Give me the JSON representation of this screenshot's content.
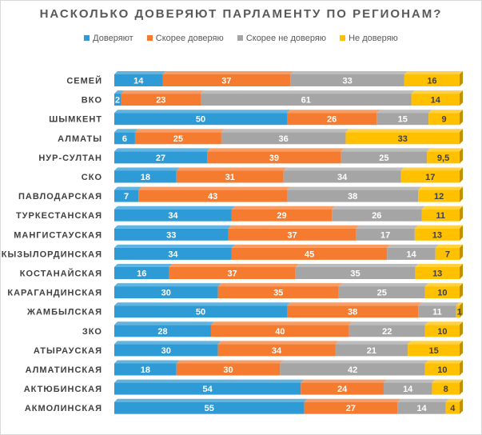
{
  "chart_data": {
    "type": "bar",
    "orientation": "horizontal",
    "stacked": "100%",
    "title": "НАСКОЛЬКО ДОВЕРЯЮТ ПАРЛАМЕНТУ ПО РЕГИОНАМ?",
    "legend_position": "top",
    "grid": false,
    "categories": [
      "СЕМЕЙ",
      "ВКО",
      "ШЫМКЕНТ",
      "АЛМАТЫ",
      "НУР-СУЛТАН",
      "СКО",
      "ПАВЛОДАРСКАЯ",
      "ТУРКЕСТАНСКАЯ",
      "МАНГИСТАУСКАЯ",
      "КЫЗЫЛОРДИНСКАЯ",
      "КОСТАНАЙСКАЯ",
      "КАРАГАНДИНСКАЯ",
      "ЖАМБЫЛСКАЯ",
      "ЗКО",
      "АТЫРАУСКАЯ",
      "АЛМАТИНСКАЯ",
      "АКТЮБИНСКАЯ",
      "АКМОЛИНСКАЯ"
    ],
    "series": [
      {
        "name": "Доверяют",
        "color": "#2E9BD6",
        "label_color": "#ffffff",
        "values": [
          14,
          2,
          50,
          6,
          27,
          18,
          7,
          34,
          33,
          34,
          16,
          30,
          50,
          28,
          30,
          18,
          54,
          55
        ],
        "labels": [
          "14",
          "2",
          "50",
          "6",
          "27",
          "18",
          "7",
          "34",
          "33",
          "34",
          "16",
          "30",
          "50",
          "28",
          "30",
          "18",
          "54",
          "55"
        ]
      },
      {
        "name": "Скорее доверяю",
        "color": "#F47B30",
        "label_color": "#ffffff",
        "values": [
          37,
          23,
          26,
          25,
          39,
          31,
          43,
          29,
          37,
          45,
          37,
          35,
          38,
          40,
          34,
          30,
          24,
          27
        ],
        "labels": [
          "37",
          "23",
          "26",
          "25",
          "39",
          "31",
          "43",
          "29",
          "37",
          "45",
          "37",
          "35",
          "38",
          "40",
          "34",
          "30",
          "24",
          "27"
        ]
      },
      {
        "name": "Скорее не доверяю",
        "color": "#A5A5A5",
        "label_color": "#ffffff",
        "values": [
          33,
          61,
          15,
          36,
          25,
          34,
          38,
          26,
          17,
          14,
          35,
          25,
          11,
          22,
          21,
          42,
          14,
          14
        ],
        "labels": [
          "33",
          "61",
          "15",
          "36",
          "25",
          "34",
          "38",
          "26",
          "17",
          "14",
          "35",
          "25",
          "11",
          "22",
          "21",
          "42",
          "14",
          "14"
        ]
      },
      {
        "name": "Не доверяю",
        "color": "#FFC000",
        "label_color": "#404040",
        "values": [
          16,
          14,
          9,
          33,
          9.5,
          17,
          12,
          11,
          13,
          7,
          13,
          10,
          1,
          10,
          15,
          10,
          8,
          4
        ],
        "labels": [
          "16",
          "14",
          "9",
          "33",
          "9,5",
          "17",
          "12",
          "11",
          "13",
          "7",
          "13",
          "10",
          "1",
          "10",
          "15",
          "10",
          "8",
          "4"
        ]
      }
    ]
  }
}
